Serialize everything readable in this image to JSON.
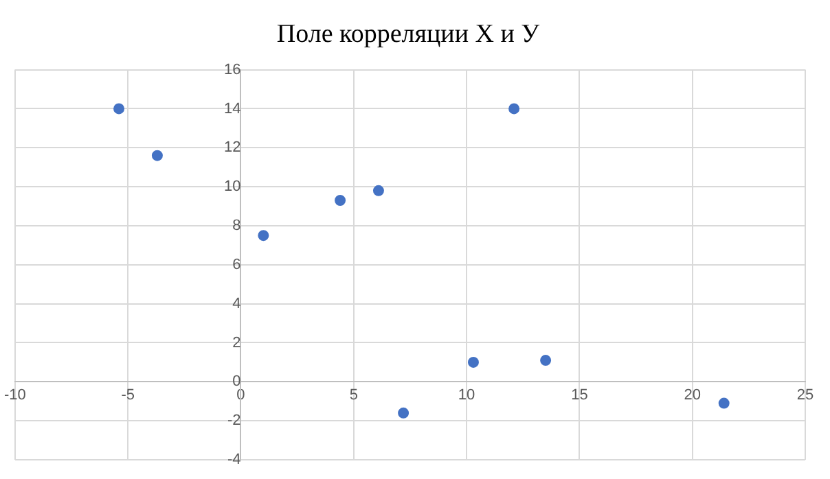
{
  "chart_data": {
    "type": "scatter",
    "title": "Поле корреляции Х и У",
    "x": [
      -5.4,
      -3.7,
      1.0,
      4.4,
      6.1,
      7.2,
      10.3,
      12.1,
      13.5,
      21.4
    ],
    "values": [
      14,
      11.6,
      7.5,
      9.3,
      9.8,
      -1.6,
      1,
      14,
      1.1,
      -1.1
    ],
    "color": "#4472c4",
    "marker": "circle",
    "xlim": [
      -10,
      25
    ],
    "ylim": [
      -4,
      16
    ],
    "xticks": [
      -10,
      -5,
      0,
      5,
      10,
      15,
      20,
      25
    ],
    "yticks": [
      -4,
      -2,
      0,
      2,
      4,
      6,
      8,
      10,
      12,
      14,
      16
    ],
    "grid": true
  }
}
